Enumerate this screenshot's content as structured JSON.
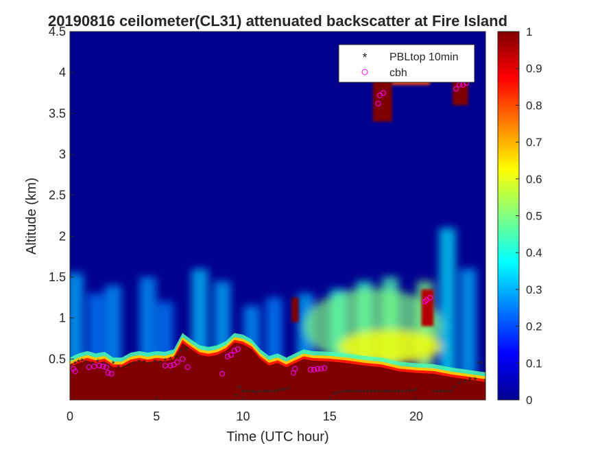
{
  "chart_data": {
    "type": "heatmap",
    "title": "20190816 ceilometer(CL31) attenuated backscatter at Fire Island",
    "xlabel": "Time (UTC hour)",
    "ylabel": "Altitude (km)",
    "xlim": [
      0,
      24
    ],
    "ylim": [
      0,
      4.5
    ],
    "xticks": [
      "0",
      "5",
      "10",
      "15",
      "20"
    ],
    "xtick_values": [
      0,
      5,
      10,
      15,
      20
    ],
    "yticks": [
      "0.5",
      "1",
      "1.5",
      "2",
      "2.5",
      "3",
      "3.5",
      "4",
      "4.5"
    ],
    "ytick_values": [
      0.5,
      1,
      1.5,
      2,
      2.5,
      3,
      3.5,
      4,
      4.5
    ],
    "colorbar": {
      "colormap": "jet",
      "range": [
        0,
        1
      ],
      "ticks": [
        "0",
        "0.1",
        "0.2",
        "0.3",
        "0.4",
        "0.5",
        "0.6",
        "0.7",
        "0.8",
        "0.9",
        "1"
      ],
      "tick_values": [
        0,
        0.1,
        0.2,
        0.3,
        0.4,
        0.5,
        0.6,
        0.7,
        0.8,
        0.9,
        1
      ]
    },
    "legend": {
      "placement": "top-right",
      "entries": [
        {
          "label": "PBLtop 10min",
          "marker": "asterisk",
          "color": "#000000"
        },
        {
          "label": "cbh",
          "marker": "circle",
          "color": "#ff00ff"
        }
      ]
    },
    "saturated_layer_top_km": [
      [
        0,
        0.4
      ],
      [
        0.5,
        0.45
      ],
      [
        1,
        0.48
      ],
      [
        1.5,
        0.45
      ],
      [
        2,
        0.47
      ],
      [
        2.5,
        0.4
      ],
      [
        3,
        0.4
      ],
      [
        3.5,
        0.46
      ],
      [
        4,
        0.48
      ],
      [
        4.5,
        0.46
      ],
      [
        5,
        0.48
      ],
      [
        5.5,
        0.47
      ],
      [
        6,
        0.5
      ],
      [
        6.5,
        0.7
      ],
      [
        7,
        0.62
      ],
      [
        7.5,
        0.55
      ],
      [
        8,
        0.53
      ],
      [
        8.5,
        0.55
      ],
      [
        9,
        0.6
      ],
      [
        9.5,
        0.7
      ],
      [
        10,
        0.68
      ],
      [
        10.5,
        0.62
      ],
      [
        11,
        0.5
      ],
      [
        11.5,
        0.42
      ],
      [
        12,
        0.45
      ],
      [
        12.5,
        0.4
      ],
      [
        13,
        0.45
      ],
      [
        13.5,
        0.5
      ],
      [
        14,
        0.48
      ],
      [
        15,
        0.47
      ],
      [
        16,
        0.45
      ],
      [
        17,
        0.42
      ],
      [
        18,
        0.4
      ],
      [
        19,
        0.35
      ],
      [
        20,
        0.33
      ],
      [
        21,
        0.32
      ],
      [
        22,
        0.28
      ],
      [
        23,
        0.25
      ],
      [
        24,
        0.22
      ]
    ],
    "cloud_blobs": [
      {
        "x0": 17.5,
        "x1": 18.6,
        "y0": 3.4,
        "y1": 3.95,
        "value": 1.0
      },
      {
        "x0": 18.6,
        "x1": 20.8,
        "y0": 3.85,
        "y1": 3.95,
        "value": 0.8
      },
      {
        "x0": 22.1,
        "x1": 23.0,
        "y0": 3.6,
        "y1": 3.95,
        "value": 1.0
      },
      {
        "x0": 12.8,
        "x1": 13.2,
        "y0": 0.95,
        "y1": 1.25,
        "value": 1.0
      },
      {
        "x0": 20.3,
        "x1": 21.0,
        "y0": 0.9,
        "y1": 1.35,
        "value": 0.95
      }
    ],
    "aerosol_plumes": [
      {
        "x": 0.3,
        "top": 1.55,
        "value": 0.3
      },
      {
        "x": 1.5,
        "top": 1.3,
        "value": 0.25
      },
      {
        "x": 2.5,
        "top": 1.4,
        "value": 0.28
      },
      {
        "x": 4.5,
        "top": 1.5,
        "value": 0.28
      },
      {
        "x": 5.5,
        "top": 1.2,
        "value": 0.25
      },
      {
        "x": 7.5,
        "top": 1.6,
        "value": 0.32
      },
      {
        "x": 8.8,
        "top": 1.45,
        "value": 0.3
      },
      {
        "x": 10.5,
        "top": 1.15,
        "value": 0.28
      },
      {
        "x": 11.8,
        "top": 1.25,
        "value": 0.26
      },
      {
        "x": 13.6,
        "top": 1.3,
        "value": 0.3
      },
      {
        "x": 15.5,
        "top": 1.35,
        "value": 0.38
      },
      {
        "x": 17.0,
        "top": 1.45,
        "value": 0.42
      },
      {
        "x": 18.5,
        "top": 1.5,
        "value": 0.45
      },
      {
        "x": 20.5,
        "top": 1.45,
        "value": 0.5
      },
      {
        "x": 21.8,
        "top": 2.1,
        "value": 0.35
      },
      {
        "x": 23.0,
        "top": 1.6,
        "value": 0.3
      }
    ],
    "series": [
      {
        "name": "PBLtop 10min",
        "x": [
          0.1,
          0.3,
          0.5,
          0.7,
          0.9,
          1.1,
          1.3,
          1.6,
          1.9,
          2.2,
          2.5,
          2.8,
          3.1,
          3.4,
          3.7,
          4.0,
          4.3,
          4.6,
          4.9,
          5.2,
          5.5,
          5.8,
          6.1,
          6.4,
          6.7,
          9.6,
          9.8,
          10.0,
          10.2,
          10.4,
          10.6,
          10.8,
          11.0,
          11.2,
          11.4,
          11.6,
          11.8,
          12.0,
          12.2,
          12.4,
          12.6,
          15.2,
          15.4,
          15.6,
          15.8,
          16.0,
          16.2,
          16.4,
          16.6,
          16.8,
          17.0,
          17.2,
          17.4,
          17.6,
          17.8,
          18.0,
          18.2,
          18.4,
          18.6,
          18.8,
          19.0,
          19.2,
          19.4,
          19.6,
          19.8,
          20.0,
          21.0,
          21.2,
          21.4,
          21.6,
          21.8,
          22.0,
          22.2,
          22.5,
          22.8,
          23.1,
          23.4,
          23.6,
          23.8,
          24.0
        ],
        "y": [
          0.42,
          0.45,
          0.47,
          0.48,
          0.46,
          0.42,
          0.45,
          0.47,
          0.44,
          0.42,
          0.45,
          0.4,
          0.4,
          0.42,
          0.45,
          0.47,
          0.46,
          0.45,
          0.47,
          0.46,
          0.48,
          0.5,
          0.52,
          0.6,
          0.62,
          0.05,
          0.15,
          0.1,
          0.1,
          0.1,
          0.1,
          0.09,
          0.1,
          0.1,
          0.1,
          0.1,
          0.1,
          0.11,
          0.12,
          0.12,
          0.14,
          0.07,
          0.08,
          0.09,
          0.1,
          0.1,
          0.1,
          0.1,
          0.1,
          0.1,
          0.1,
          0.1,
          0.1,
          0.1,
          0.1,
          0.1,
          0.1,
          0.1,
          0.1,
          0.1,
          0.1,
          0.1,
          0.1,
          0.11,
          0.11,
          0.12,
          0.1,
          0.1,
          0.1,
          0.1,
          0.1,
          0.1,
          0.15,
          0.2,
          0.22,
          0.25,
          0.25,
          0.45,
          0.45,
          0.24
        ]
      },
      {
        "name": "cbh",
        "x": [
          0.2,
          0.3,
          1.1,
          1.4,
          1.7,
          1.9,
          2.1,
          2.2,
          2.4,
          5.5,
          5.8,
          6.0,
          6.2,
          6.5,
          6.8,
          8.8,
          9.1,
          9.3,
          9.5,
          9.7,
          12.9,
          13.0,
          13.9,
          14.1,
          14.3,
          14.5,
          14.7,
          17.8,
          17.9,
          18.1,
          20.5,
          20.6,
          20.8,
          22.3,
          22.5,
          22.7,
          22.9
        ],
        "y": [
          0.38,
          0.35,
          0.4,
          0.41,
          0.42,
          0.41,
          0.4,
          0.33,
          0.32,
          0.42,
          0.42,
          0.43,
          0.46,
          0.5,
          0.4,
          0.32,
          0.53,
          0.55,
          0.6,
          0.62,
          0.33,
          0.38,
          0.37,
          0.37,
          0.38,
          0.38,
          0.39,
          3.62,
          3.72,
          3.75,
          1.2,
          1.22,
          1.25,
          3.8,
          3.85,
          3.85,
          3.87
        ]
      }
    ]
  }
}
